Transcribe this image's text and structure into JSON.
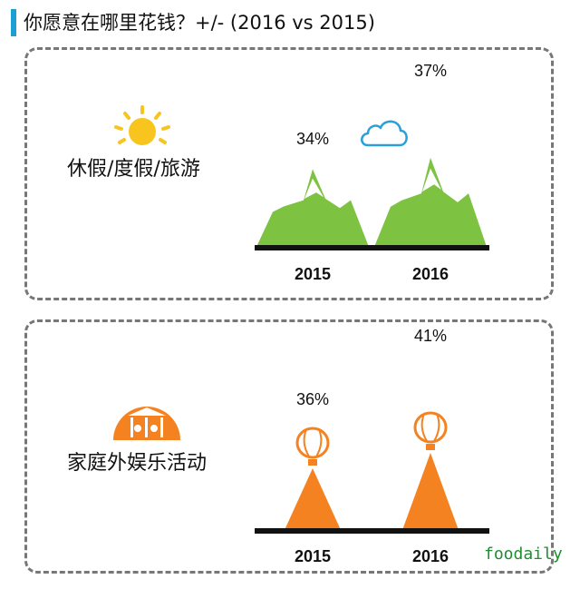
{
  "header": {
    "title": "你愿意在哪里花钱？+/- (2016 vs 2015)"
  },
  "watermark": "foodaily",
  "icons": {
    "sun": "sun-icon",
    "cloud": "cloud-icon",
    "carousel": "carousel-icon",
    "balloon": "hot-air-balloon-icon"
  },
  "colors": {
    "accent": "#1e9fd4",
    "green": "#7dc241",
    "orange": "#f58220",
    "sun": "#f7c51e",
    "cloud": "#2a9fd8"
  },
  "chart_data": [
    {
      "type": "bar",
      "label": "休假/度假/旅游",
      "categories": [
        "2015",
        "2016"
      ],
      "values": [
        34,
        37
      ],
      "value_labels": [
        "34%",
        "37%"
      ]
    },
    {
      "type": "bar",
      "label": "家庭外娱乐活动",
      "categories": [
        "2015",
        "2016"
      ],
      "values": [
        36,
        41
      ],
      "value_labels": [
        "36%",
        "41%"
      ]
    }
  ]
}
